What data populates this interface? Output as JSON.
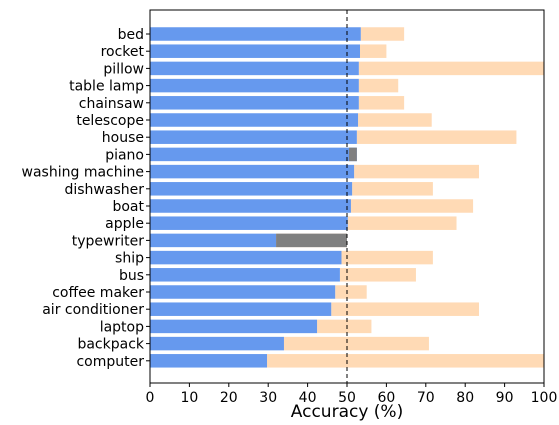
{
  "chart_data": {
    "type": "bar",
    "orientation": "horizontal",
    "xlabel": "Accuracy (%)",
    "ylabel": "",
    "title": "",
    "xlim": [
      0,
      100
    ],
    "xticks": [
      0,
      10,
      20,
      30,
      40,
      50,
      60,
      70,
      80,
      90,
      100
    ],
    "reference_line": 50,
    "grid": false,
    "colors": {
      "primary": "#6699ee",
      "secondary": "#ffdab5",
      "highlight": "#808080",
      "reference": "#000000"
    },
    "categories": [
      "bed",
      "rocket",
      "pillow",
      "table lamp",
      "chainsaw",
      "telescope",
      "house",
      "piano",
      "washing machine",
      "dishwasher",
      "boat",
      "apple",
      "typewriter",
      "ship",
      "bus",
      "coffee maker",
      "air conditioner",
      "laptop",
      "backpack",
      "computer"
    ],
    "series": [
      {
        "values": [
          53.5,
          53.3,
          53.0,
          53.0,
          53.0,
          52.8,
          52.5,
          52.5,
          51.8,
          51.3,
          51.0,
          50.2,
          32.0,
          48.6,
          48.2,
          47.0,
          46.0,
          42.4,
          34.0,
          29.7
        ]
      },
      {
        "values": [
          64.5,
          60.0,
          100.0,
          63.0,
          64.5,
          71.5,
          93.0,
          50.5,
          83.5,
          71.8,
          82.0,
          77.8,
          50.0,
          71.8,
          67.5,
          55.0,
          83.5,
          56.2,
          70.8,
          100.0
        ]
      }
    ],
    "highlighted_categories": [
      "piano",
      "typewriter"
    ]
  }
}
